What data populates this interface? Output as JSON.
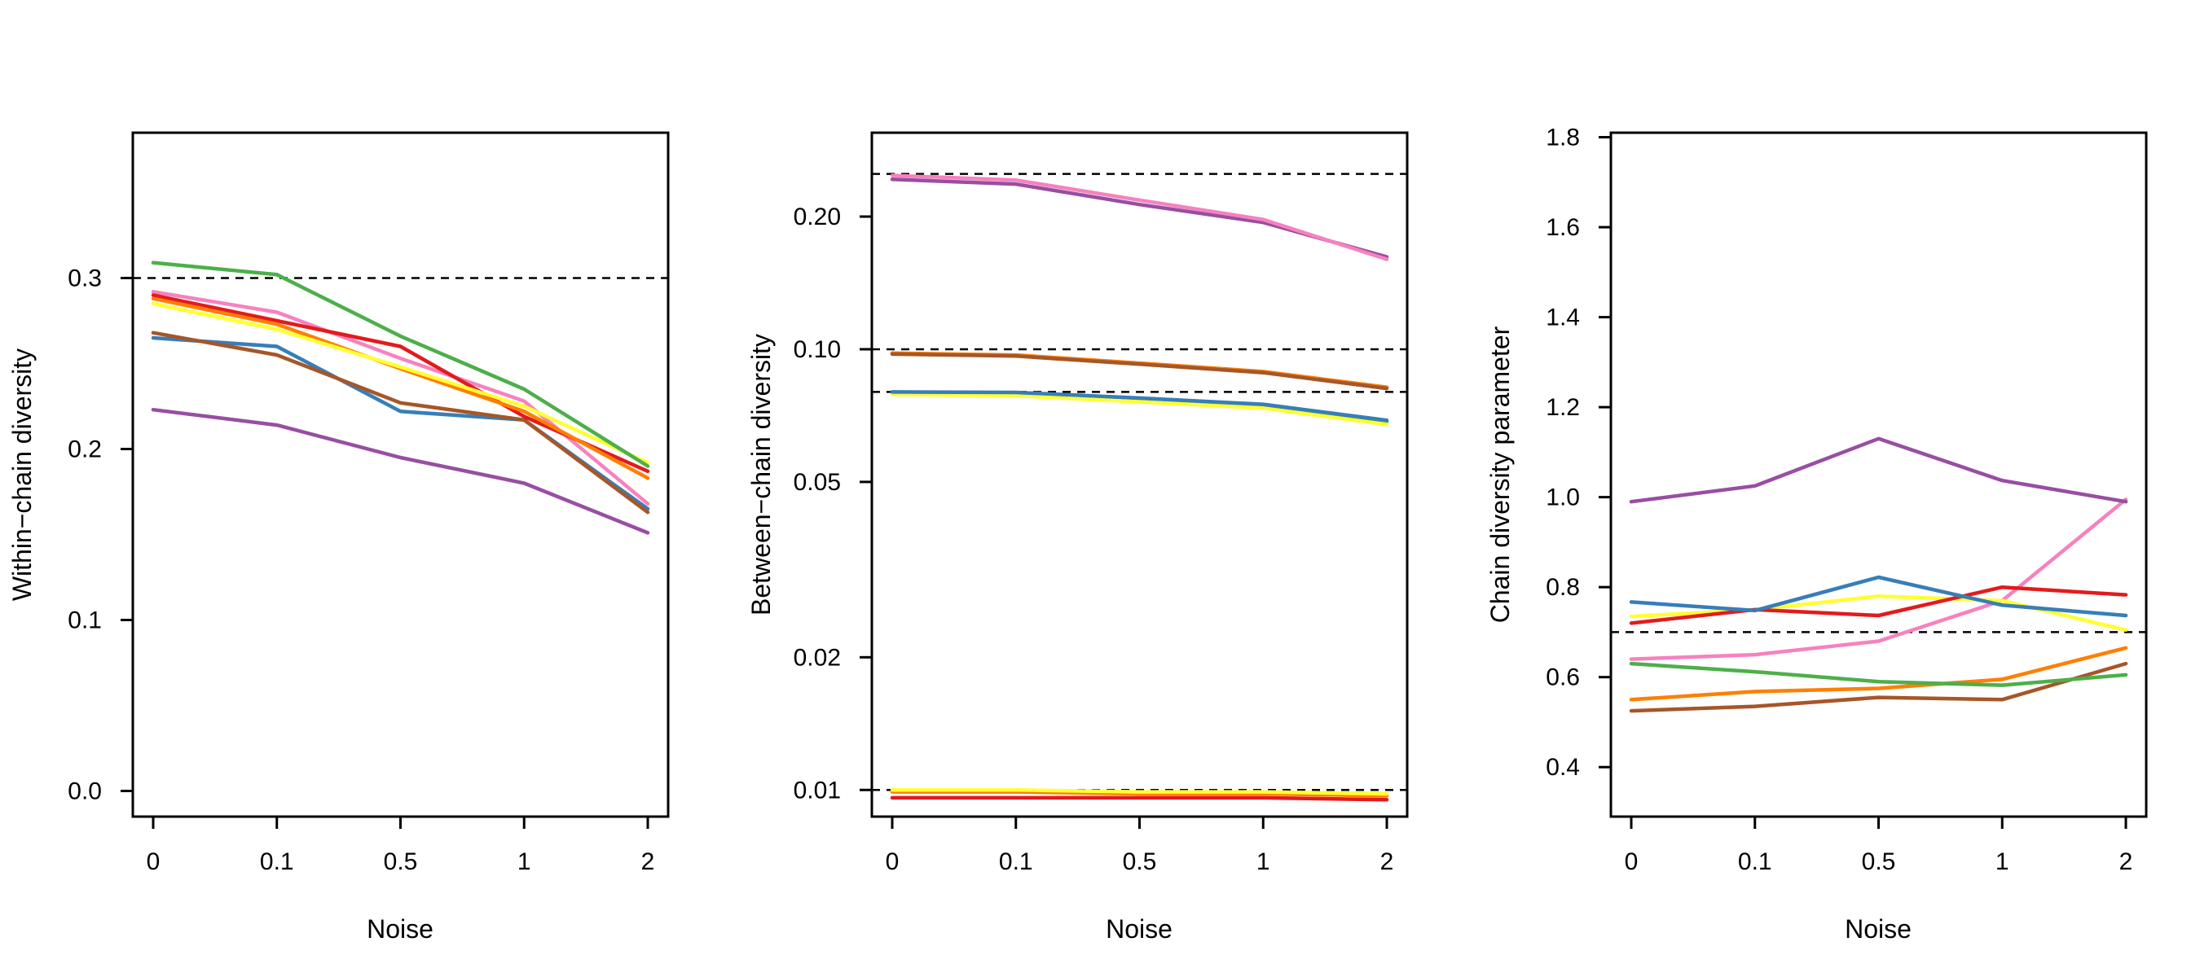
{
  "chart_data": [
    {
      "type": "line",
      "xlabel": "Noise",
      "ylabel": "Within−chain diversity",
      "y_scale": "linear",
      "categories": [
        "0",
        "0.1",
        "0.5",
        "1",
        "2"
      ],
      "ylim": [
        -0.015,
        0.385
      ],
      "yticks": [
        0.0,
        0.1,
        0.2,
        0.3
      ],
      "ytick_labels": [
        "0.0",
        "0.1",
        "0.2",
        "0.3"
      ],
      "reference_lines": [
        0.3
      ],
      "series": [
        {
          "name": "purple",
          "color": "#984EA3",
          "values": [
            0.223,
            0.214,
            0.195,
            0.18,
            0.151
          ]
        },
        {
          "name": "blue",
          "color": "#377EB8",
          "values": [
            0.265,
            0.26,
            0.222,
            0.217,
            0.165
          ]
        },
        {
          "name": "brown",
          "color": "#A65628",
          "values": [
            0.268,
            0.255,
            0.227,
            0.217,
            0.163
          ]
        },
        {
          "name": "pink",
          "color": "#F781BF",
          "values": [
            0.292,
            0.28,
            0.253,
            0.228,
            0.168
          ]
        },
        {
          "name": "red",
          "color": "#E41A1C",
          "values": [
            0.29,
            0.275,
            0.26,
            0.219,
            0.187
          ]
        },
        {
          "name": "orange",
          "color": "#FF7F00",
          "values": [
            0.288,
            0.273,
            0.247,
            0.222,
            0.183
          ]
        },
        {
          "name": "yellow",
          "color": "#FFFF33",
          "values": [
            0.285,
            0.27,
            0.248,
            0.225,
            0.192
          ]
        },
        {
          "name": "green",
          "color": "#4DAF4A",
          "values": [
            0.309,
            0.302,
            0.266,
            0.235,
            0.19
          ]
        }
      ]
    },
    {
      "type": "line",
      "xlabel": "Noise",
      "ylabel": "Between−chain diversity",
      "y_scale": "log",
      "categories": [
        "0",
        "0.1",
        "0.5",
        "1",
        "2"
      ],
      "ylim": [
        0.0087,
        0.31
      ],
      "yticks": [
        0.01,
        0.02,
        0.05,
        0.1,
        0.2
      ],
      "ytick_labels": [
        "0.01",
        "0.02",
        "0.05",
        "0.10",
        "0.20"
      ],
      "reference_lines": [
        0.25,
        0.1,
        0.08,
        0.01
      ],
      "series": [
        {
          "name": "red",
          "color": "#E41A1C",
          "values": [
            0.0096,
            0.0096,
            0.0096,
            0.0096,
            0.0095
          ]
        },
        {
          "name": "orange",
          "color": "#FF7F00",
          "values": [
            0.0099,
            0.0099,
            0.0098,
            0.0098,
            0.0097
          ]
        },
        {
          "name": "yellow",
          "color": "#FFFF33",
          "values": [
            0.01,
            0.01,
            0.0099,
            0.0099,
            0.0098
          ]
        },
        {
          "name": "green",
          "color": "#4DAF4A",
          "values": [
            0.0797,
            0.0795,
            0.077,
            0.0745,
            0.0685
          ]
        },
        {
          "name": "yellow-2",
          "color": "#FFFF33",
          "values": [
            0.079,
            0.0785,
            0.076,
            0.0735,
            0.0675
          ]
        },
        {
          "name": "blue",
          "color": "#377EB8",
          "values": [
            0.08,
            0.0798,
            0.0775,
            0.075,
            0.069
          ]
        },
        {
          "name": "orange-2",
          "color": "#FF7F00",
          "values": [
            0.098,
            0.097,
            0.093,
            0.089,
            0.082
          ]
        },
        {
          "name": "brown",
          "color": "#A65628",
          "values": [
            0.0975,
            0.0965,
            0.0925,
            0.0885,
            0.0815
          ]
        },
        {
          "name": "purple",
          "color": "#984EA3",
          "values": [
            0.243,
            0.237,
            0.213,
            0.194,
            0.162
          ]
        },
        {
          "name": "pink",
          "color": "#F781BF",
          "values": [
            0.248,
            0.242,
            0.218,
            0.197,
            0.16
          ]
        }
      ]
    },
    {
      "type": "line",
      "xlabel": "Noise",
      "ylabel": "Chain diversity parameter",
      "y_scale": "linear",
      "categories": [
        "0",
        "0.1",
        "0.5",
        "1",
        "2"
      ],
      "ylim": [
        0.29,
        1.81
      ],
      "yticks": [
        0.4,
        0.6,
        0.8,
        1.0,
        1.2,
        1.4,
        1.6,
        1.8
      ],
      "ytick_labels": [
        "0.4",
        "0.6",
        "0.8",
        "1.0",
        "1.2",
        "1.4",
        "1.6",
        "1.8"
      ],
      "reference_lines": [
        0.7
      ],
      "series": [
        {
          "name": "brown",
          "color": "#A65628",
          "values": [
            0.525,
            0.535,
            0.555,
            0.55,
            0.63
          ]
        },
        {
          "name": "orange",
          "color": "#FF7F00",
          "values": [
            0.55,
            0.568,
            0.575,
            0.595,
            0.665
          ]
        },
        {
          "name": "green",
          "color": "#4DAF4A",
          "values": [
            0.63,
            0.612,
            0.59,
            0.582,
            0.605
          ]
        },
        {
          "name": "pink",
          "color": "#F781BF",
          "values": [
            0.64,
            0.65,
            0.68,
            0.77,
            0.995
          ]
        },
        {
          "name": "yellow",
          "color": "#FFFF33",
          "values": [
            0.735,
            0.75,
            0.78,
            0.77,
            0.705
          ]
        },
        {
          "name": "red",
          "color": "#E41A1C",
          "values": [
            0.72,
            0.75,
            0.737,
            0.8,
            0.783
          ]
        },
        {
          "name": "blue",
          "color": "#377EB8",
          "values": [
            0.767,
            0.748,
            0.822,
            0.76,
            0.737
          ]
        },
        {
          "name": "purple",
          "color": "#984EA3",
          "values": [
            0.99,
            1.025,
            1.13,
            1.037,
            0.99
          ]
        }
      ]
    }
  ]
}
